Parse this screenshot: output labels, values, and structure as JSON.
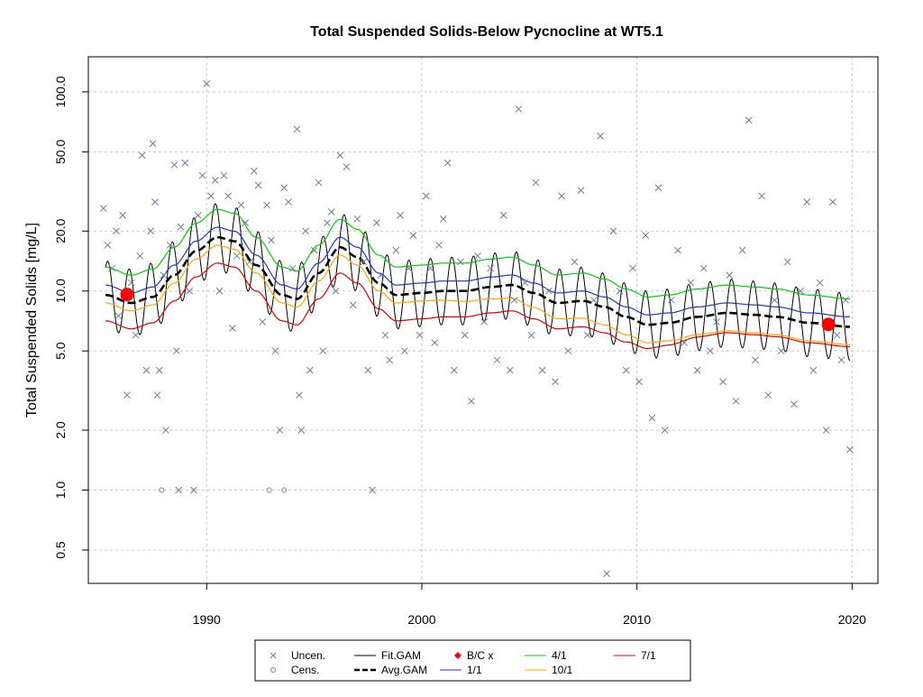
{
  "chart_data": {
    "type": "scatter",
    "title": "Total Suspended Solids-Below Pycnocline at WT5.1",
    "xlabel": "",
    "ylabel": "Total Suspended Solids [mg/L]",
    "y_scale": "log",
    "xlim": [
      1984.5,
      2021.2
    ],
    "ylim": [
      0.34,
      150
    ],
    "grid": true,
    "x_ticks": [
      1990,
      2000,
      2010,
      2020
    ],
    "x_tick_labels": [
      "1990",
      "2000",
      "2010",
      "2020"
    ],
    "y_ticks": [
      0.5,
      1,
      2,
      5,
      10,
      20,
      50,
      100
    ],
    "y_tick_labels": [
      "0.5",
      "1.0",
      "2.0",
      "5.0",
      "10.0",
      "20.0",
      "50.0",
      "100.0"
    ],
    "legend_position": "bottom-center",
    "legend": [
      {
        "label": "Uncen.",
        "symbol": "x",
        "color": "#6b7a99"
      },
      {
        "label": "Cens.",
        "symbol": "circle",
        "color": "#808080"
      },
      {
        "label": "Fit.GAM",
        "symbol": "line",
        "color": "#000000"
      },
      {
        "label": "Avg.GAM",
        "symbol": "dashed",
        "color": "#000000"
      },
      {
        "label": "B/C x",
        "symbol": "diamond",
        "color": "#ff0000"
      },
      {
        "label": "1/1",
        "symbol": "line",
        "color": "#2233cc"
      },
      {
        "label": "4/1",
        "symbol": "line",
        "color": "#00cc00"
      },
      {
        "label": "7/1",
        "symbol": "line",
        "color": "#dd0000"
      },
      {
        "label": "10/1",
        "symbol": "line",
        "color": "#ffa500"
      }
    ],
    "colors": {
      "uncensored": "#6b7a99",
      "censored": "#808080",
      "fit_gam": "#000000",
      "avg_gam": "#000000",
      "bc": "#ff0000",
      "d11": "#2233cc",
      "d41": "#00cc00",
      "d71": "#dd0000",
      "d101": "#ffa500"
    },
    "bc_points": [
      {
        "x": 1986.3,
        "y": 9.6
      },
      {
        "x": 2018.9,
        "y": 6.8
      }
    ],
    "censored": [
      {
        "x": 1987.9,
        "y": 1.0
      },
      {
        "x": 1992.9,
        "y": 1.0
      },
      {
        "x": 1993.6,
        "y": 1.0
      }
    ],
    "uncensored": [
      {
        "x": 1985.2,
        "y": 26
      },
      {
        "x": 1985.4,
        "y": 17
      },
      {
        "x": 1985.6,
        "y": 13
      },
      {
        "x": 1985.8,
        "y": 20
      },
      {
        "x": 1985.9,
        "y": 7.5
      },
      {
        "x": 1986.1,
        "y": 24
      },
      {
        "x": 1986.3,
        "y": 3.0
      },
      {
        "x": 1986.5,
        "y": 11
      },
      {
        "x": 1986.7,
        "y": 6.0
      },
      {
        "x": 1986.9,
        "y": 15
      },
      {
        "x": 1987.0,
        "y": 48
      },
      {
        "x": 1987.2,
        "y": 4.0
      },
      {
        "x": 1987.4,
        "y": 20
      },
      {
        "x": 1987.5,
        "y": 55
      },
      {
        "x": 1987.6,
        "y": 28
      },
      {
        "x": 1987.7,
        "y": 3.0
      },
      {
        "x": 1987.8,
        "y": 4.0
      },
      {
        "x": 1988.0,
        "y": 12
      },
      {
        "x": 1988.1,
        "y": 2.0
      },
      {
        "x": 1988.3,
        "y": 17
      },
      {
        "x": 1988.5,
        "y": 43
      },
      {
        "x": 1988.6,
        "y": 5.0
      },
      {
        "x": 1988.7,
        "y": 1.0
      },
      {
        "x": 1988.8,
        "y": 21
      },
      {
        "x": 1989.0,
        "y": 44
      },
      {
        "x": 1989.2,
        "y": 10
      },
      {
        "x": 1989.4,
        "y": 1.0
      },
      {
        "x": 1989.6,
        "y": 24
      },
      {
        "x": 1989.8,
        "y": 38
      },
      {
        "x": 1990.0,
        "y": 110
      },
      {
        "x": 1990.2,
        "y": 30
      },
      {
        "x": 1990.4,
        "y": 36
      },
      {
        "x": 1990.6,
        "y": 10
      },
      {
        "x": 1990.8,
        "y": 38
      },
      {
        "x": 1991.0,
        "y": 30
      },
      {
        "x": 1991.2,
        "y": 6.5
      },
      {
        "x": 1991.4,
        "y": 15
      },
      {
        "x": 1991.6,
        "y": 27
      },
      {
        "x": 1991.8,
        "y": 22
      },
      {
        "x": 1992.0,
        "y": 14
      },
      {
        "x": 1992.2,
        "y": 40
      },
      {
        "x": 1992.4,
        "y": 34
      },
      {
        "x": 1992.6,
        "y": 7.0
      },
      {
        "x": 1992.8,
        "y": 27
      },
      {
        "x": 1993.0,
        "y": 18
      },
      {
        "x": 1993.2,
        "y": 5.0
      },
      {
        "x": 1993.4,
        "y": 2.0
      },
      {
        "x": 1993.6,
        "y": 33
      },
      {
        "x": 1993.8,
        "y": 28
      },
      {
        "x": 1994.0,
        "y": 13
      },
      {
        "x": 1994.2,
        "y": 65
      },
      {
        "x": 1994.3,
        "y": 3.0
      },
      {
        "x": 1994.4,
        "y": 2.0
      },
      {
        "x": 1994.6,
        "y": 20
      },
      {
        "x": 1994.8,
        "y": 4.0
      },
      {
        "x": 1995.0,
        "y": 16
      },
      {
        "x": 1995.2,
        "y": 35
      },
      {
        "x": 1995.4,
        "y": 5.0
      },
      {
        "x": 1995.6,
        "y": 22
      },
      {
        "x": 1995.8,
        "y": 25
      },
      {
        "x": 1996.0,
        "y": 10
      },
      {
        "x": 1996.2,
        "y": 48
      },
      {
        "x": 1996.5,
        "y": 42
      },
      {
        "x": 1996.8,
        "y": 8.5
      },
      {
        "x": 1997.0,
        "y": 23
      },
      {
        "x": 1997.3,
        "y": 14
      },
      {
        "x": 1997.5,
        "y": 4.0
      },
      {
        "x": 1997.7,
        "y": 1.0
      },
      {
        "x": 1997.9,
        "y": 22
      },
      {
        "x": 1998.1,
        "y": 12
      },
      {
        "x": 1998.3,
        "y": 6.0
      },
      {
        "x": 1998.5,
        "y": 4.5
      },
      {
        "x": 1998.8,
        "y": 16
      },
      {
        "x": 1999.0,
        "y": 24
      },
      {
        "x": 1999.2,
        "y": 5.0
      },
      {
        "x": 1999.4,
        "y": 13
      },
      {
        "x": 1999.6,
        "y": 19
      },
      {
        "x": 1999.9,
        "y": 6.0
      },
      {
        "x": 2000.2,
        "y": 30
      },
      {
        "x": 2000.4,
        "y": 13
      },
      {
        "x": 2000.6,
        "y": 5.5
      },
      {
        "x": 2000.8,
        "y": 17
      },
      {
        "x": 2001.0,
        "y": 23
      },
      {
        "x": 2001.2,
        "y": 44
      },
      {
        "x": 2001.5,
        "y": 4.0
      },
      {
        "x": 2001.8,
        "y": 14
      },
      {
        "x": 2002.0,
        "y": 6.0
      },
      {
        "x": 2002.3,
        "y": 2.8
      },
      {
        "x": 2002.6,
        "y": 15
      },
      {
        "x": 2002.9,
        "y": 7.0
      },
      {
        "x": 2003.2,
        "y": 13
      },
      {
        "x": 2003.5,
        "y": 4.5
      },
      {
        "x": 2003.8,
        "y": 24
      },
      {
        "x": 2004.1,
        "y": 4.0
      },
      {
        "x": 2004.3,
        "y": 9.0
      },
      {
        "x": 2004.5,
        "y": 82
      },
      {
        "x": 2004.8,
        "y": 11
      },
      {
        "x": 2005.1,
        "y": 6.0
      },
      {
        "x": 2005.3,
        "y": 35
      },
      {
        "x": 2005.6,
        "y": 4.0
      },
      {
        "x": 2005.9,
        "y": 10
      },
      {
        "x": 2006.2,
        "y": 3.5
      },
      {
        "x": 2006.5,
        "y": 30
      },
      {
        "x": 2006.8,
        "y": 5.0
      },
      {
        "x": 2007.1,
        "y": 14
      },
      {
        "x": 2007.4,
        "y": 32
      },
      {
        "x": 2007.7,
        "y": 6.0
      },
      {
        "x": 2008.0,
        "y": 9.0
      },
      {
        "x": 2008.3,
        "y": 60
      },
      {
        "x": 2008.6,
        "y": 0.38
      },
      {
        "x": 2008.9,
        "y": 20
      },
      {
        "x": 2009.2,
        "y": 10
      },
      {
        "x": 2009.5,
        "y": 4.0
      },
      {
        "x": 2009.8,
        "y": 13
      },
      {
        "x": 2010.1,
        "y": 3.5
      },
      {
        "x": 2010.4,
        "y": 19
      },
      {
        "x": 2010.7,
        "y": 2.3
      },
      {
        "x": 2011.0,
        "y": 33
      },
      {
        "x": 2011.3,
        "y": 2.0
      },
      {
        "x": 2011.6,
        "y": 9.0
      },
      {
        "x": 2011.9,
        "y": 16
      },
      {
        "x": 2012.2,
        "y": 5.5
      },
      {
        "x": 2012.5,
        "y": 11
      },
      {
        "x": 2012.8,
        "y": 4.0
      },
      {
        "x": 2013.1,
        "y": 13
      },
      {
        "x": 2013.4,
        "y": 5.0
      },
      {
        "x": 2013.7,
        "y": 7.0
      },
      {
        "x": 2014.0,
        "y": 3.5
      },
      {
        "x": 2014.3,
        "y": 12
      },
      {
        "x": 2014.6,
        "y": 2.8
      },
      {
        "x": 2014.9,
        "y": 16
      },
      {
        "x": 2015.2,
        "y": 72
      },
      {
        "x": 2015.5,
        "y": 4.5
      },
      {
        "x": 2015.8,
        "y": 30
      },
      {
        "x": 2016.1,
        "y": 3.0
      },
      {
        "x": 2016.4,
        "y": 9.0
      },
      {
        "x": 2016.7,
        "y": 5.0
      },
      {
        "x": 2017.0,
        "y": 14
      },
      {
        "x": 2017.3,
        "y": 2.7
      },
      {
        "x": 2017.6,
        "y": 10
      },
      {
        "x": 2017.9,
        "y": 28
      },
      {
        "x": 2018.2,
        "y": 4.0
      },
      {
        "x": 2018.5,
        "y": 11
      },
      {
        "x": 2018.8,
        "y": 2.0
      },
      {
        "x": 2019.1,
        "y": 28
      },
      {
        "x": 2019.3,
        "y": 6.0
      },
      {
        "x": 2019.5,
        "y": 4.5
      },
      {
        "x": 2019.7,
        "y": 9.0
      },
      {
        "x": 2019.9,
        "y": 1.6
      }
    ]
  }
}
